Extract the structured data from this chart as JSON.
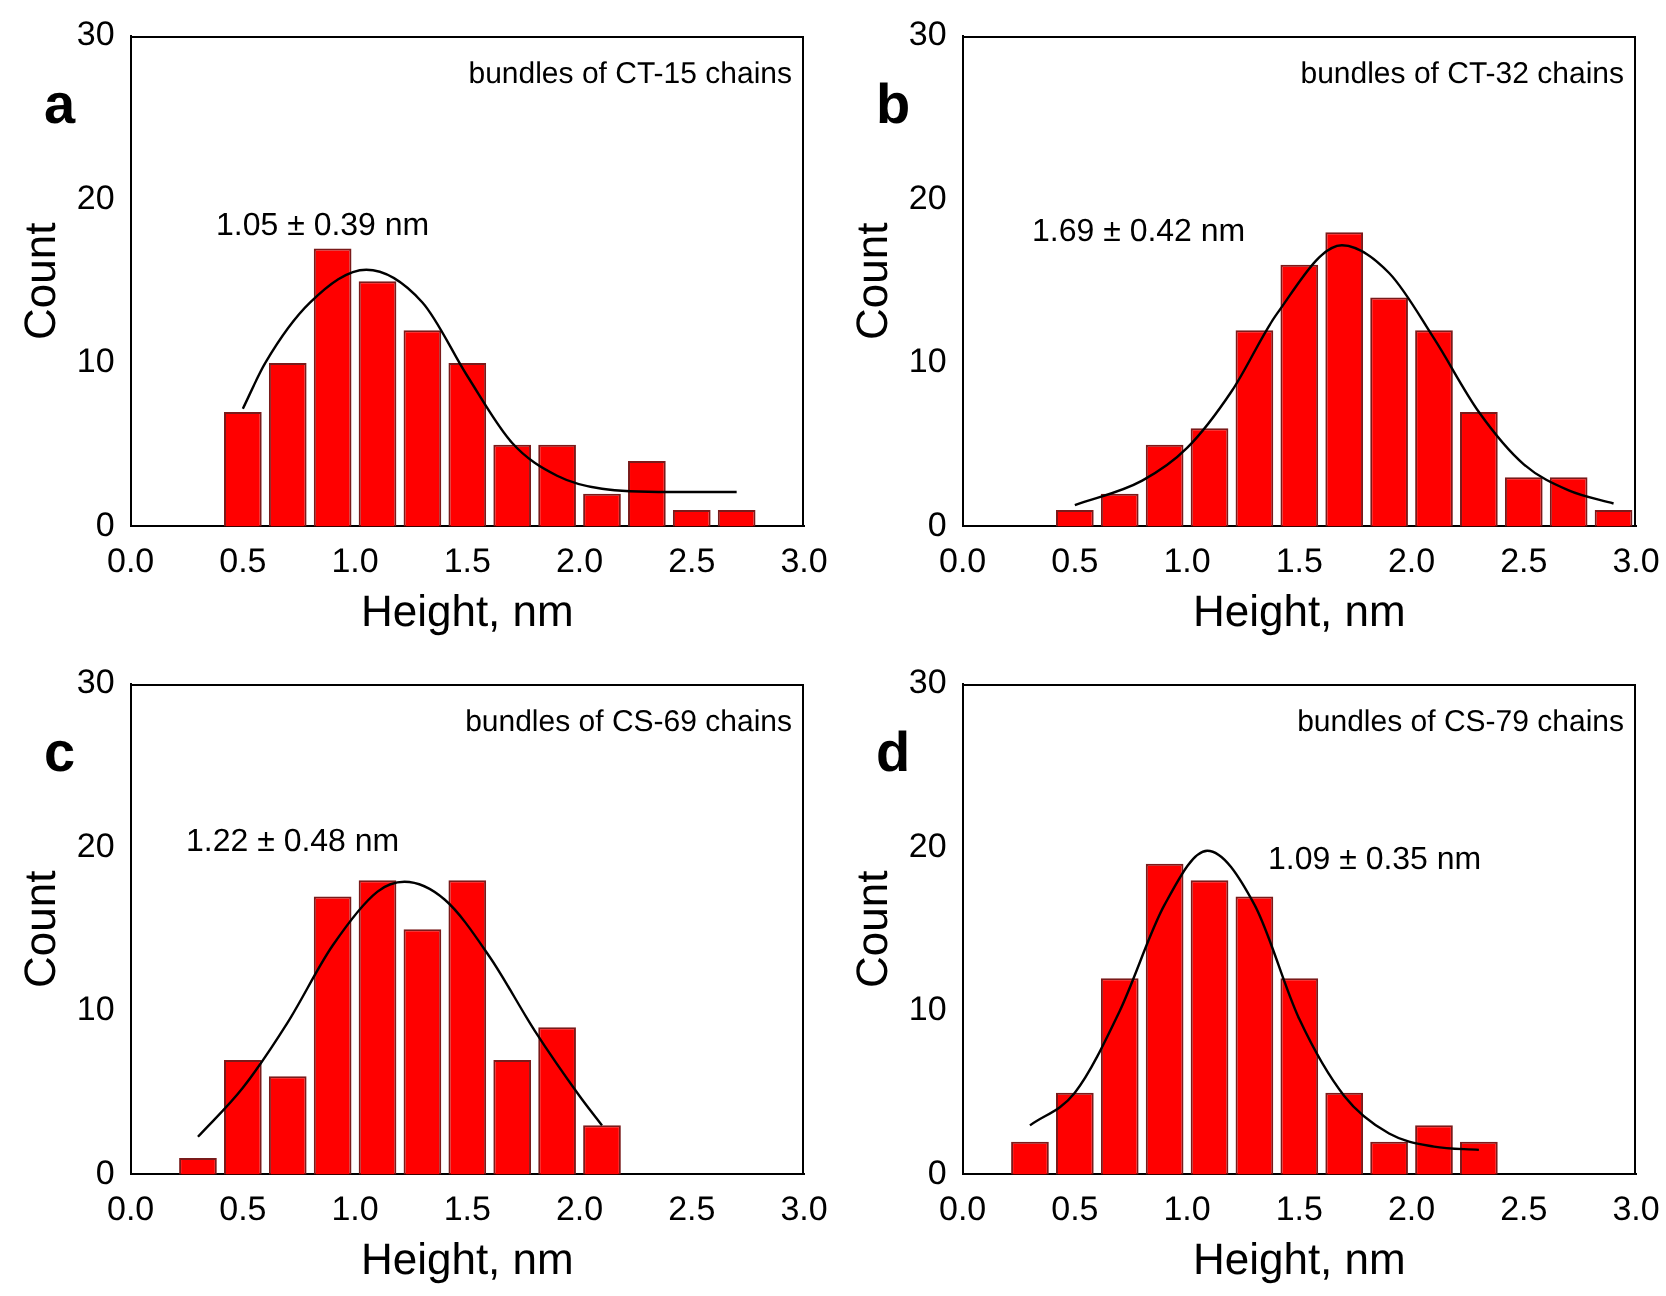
{
  "chart_data": [
    {
      "type": "histogram",
      "title": "a",
      "xlabel": "Height, nm",
      "ylabel": "Count",
      "xlim": [
        0,
        3
      ],
      "ylim": [
        0,
        30
      ],
      "xticks": [
        {
          "value": 0,
          "label": "0.0"
        },
        {
          "value": 0.5,
          "label": "0.5"
        },
        {
          "value": 1,
          "label": "1.0"
        },
        {
          "value": 1.5,
          "label": "1.5"
        },
        {
          "value": 2,
          "label": "2.0"
        },
        {
          "value": 2.5,
          "label": "2.5"
        },
        {
          "value": 3,
          "label": "3.0"
        }
      ],
      "yticks": [
        0,
        10,
        20,
        30
      ],
      "bins": [
        0.4,
        0.6,
        0.8,
        1.0,
        1.2,
        1.4,
        1.6,
        1.8,
        2.0,
        2.2,
        2.4,
        2.6,
        2.8
      ],
      "marker": "none",
      "annotations": [
        "bundles of CT-15 chains",
        "1.05 ± 0.39 nm"
      ],
      "series": [
        {
          "color": "#ff0000",
          "values": [
            7,
            10,
            17,
            15,
            12,
            10,
            5,
            5,
            2,
            4,
            1,
            1
          ]
        },
        {
          "type": "line",
          "color": "#000000",
          "x": [
            0.5,
            0.6,
            0.8,
            1.05,
            1.3,
            1.5,
            1.7,
            1.9,
            2.1,
            2.4,
            2.7
          ],
          "values": [
            7.2,
            10,
            13.7,
            15.7,
            13.7,
            9.2,
            5.1,
            3.1,
            2.3,
            2.1,
            2.1
          ]
        }
      ]
    },
    {
      "type": "histogram",
      "title": "b",
      "xlabel": "Height, nm",
      "ylabel": "Count",
      "xlim": [
        0,
        3
      ],
      "ylim": [
        0,
        30
      ],
      "xticks": [
        {
          "value": 0,
          "label": "0.0"
        },
        {
          "value": 0.5,
          "label": "0.5"
        },
        {
          "value": 1,
          "label": "1.0"
        },
        {
          "value": 1.5,
          "label": "1.5"
        },
        {
          "value": 2,
          "label": "2.0"
        },
        {
          "value": 2.5,
          "label": "2.5"
        },
        {
          "value": 3,
          "label": "3.0"
        }
      ],
      "yticks": [
        0,
        10,
        20,
        30
      ],
      "bins": [
        0.4,
        0.6,
        0.8,
        1.0,
        1.2,
        1.4,
        1.6,
        1.8,
        2.0,
        2.2,
        2.4,
        2.6,
        2.8,
        3.0
      ],
      "marker": "none",
      "annotations": [
        "bundles of CT-32 chains",
        "1.69 ± 0.42 nm"
      ],
      "series": [
        {
          "color": "#ff0000",
          "values": [
            1,
            2,
            5,
            6,
            12,
            16,
            18,
            14,
            12,
            7,
            3,
            3,
            1
          ]
        },
        {
          "type": "line",
          "color": "#000000",
          "x": [
            0.5,
            0.8,
            1.0,
            1.2,
            1.4,
            1.69,
            1.9,
            2.1,
            2.3,
            2.5,
            2.7,
            2.9
          ],
          "values": [
            1.3,
            2.8,
            4.8,
            8.3,
            13,
            17.2,
            15.5,
            11.5,
            7,
            3.8,
            2.2,
            1.4
          ]
        }
      ]
    },
    {
      "type": "histogram",
      "title": "c",
      "xlabel": "Height, nm",
      "ylabel": "Count",
      "xlim": [
        0,
        3
      ],
      "ylim": [
        0,
        30
      ],
      "xticks": [
        {
          "value": 0,
          "label": "0.0"
        },
        {
          "value": 0.5,
          "label": "0.5"
        },
        {
          "value": 1,
          "label": "1.0"
        },
        {
          "value": 1.5,
          "label": "1.5"
        },
        {
          "value": 2,
          "label": "2.0"
        },
        {
          "value": 2.5,
          "label": "2.5"
        },
        {
          "value": 3,
          "label": "3.0"
        }
      ],
      "yticks": [
        0,
        10,
        20,
        30
      ],
      "bins": [
        0.2,
        0.4,
        0.6,
        0.8,
        1.0,
        1.2,
        1.4,
        1.6,
        1.8,
        2.0,
        2.2
      ],
      "marker": "none",
      "annotations": [
        "bundles of CS-69 chains",
        "1.22 ± 0.48 nm"
      ],
      "series": [
        {
          "color": "#ff0000",
          "values": [
            1,
            7,
            6,
            17,
            18,
            15,
            18,
            7,
            9,
            3
          ]
        },
        {
          "type": "line",
          "color": "#000000",
          "x": [
            0.3,
            0.5,
            0.7,
            0.9,
            1.1,
            1.22,
            1.4,
            1.6,
            1.8,
            2.0,
            2.1
          ],
          "values": [
            2.3,
            5.3,
            9.3,
            14,
            17.3,
            17.9,
            16.8,
            13.3,
            8.8,
            4.8,
            3
          ]
        }
      ]
    },
    {
      "type": "histogram",
      "title": "d",
      "xlabel": "Height, nm",
      "ylabel": "Count",
      "xlim": [
        0,
        3
      ],
      "ylim": [
        0,
        30
      ],
      "xticks": [
        {
          "value": 0,
          "label": "0.0"
        },
        {
          "value": 0.5,
          "label": "0.5"
        },
        {
          "value": 1,
          "label": "1.0"
        },
        {
          "value": 1.5,
          "label": "1.5"
        },
        {
          "value": 2,
          "label": "2.0"
        },
        {
          "value": 2.5,
          "label": "2.5"
        },
        {
          "value": 3,
          "label": "3.0"
        }
      ],
      "yticks": [
        0,
        10,
        20,
        30
      ],
      "bins": [
        0.2,
        0.4,
        0.6,
        0.8,
        1.0,
        1.2,
        1.4,
        1.6,
        1.8,
        2.0,
        2.2,
        2.4
      ],
      "marker": "none",
      "annotations": [
        "bundles of CS-79 chains",
        "1.09 ± 0.35 nm"
      ],
      "series": [
        {
          "color": "#ff0000",
          "values": [
            2,
            5,
            12,
            19,
            18,
            17,
            12,
            5,
            2,
            3,
            2
          ]
        },
        {
          "type": "line",
          "color": "#000000",
          "x": [
            0.3,
            0.5,
            0.7,
            0.9,
            1.09,
            1.3,
            1.5,
            1.7,
            1.9,
            2.1,
            2.3
          ],
          "values": [
            3,
            5,
            10,
            16.5,
            19.8,
            16.5,
            9.5,
            4.8,
            2.5,
            1.7,
            1.5
          ]
        }
      ]
    }
  ]
}
